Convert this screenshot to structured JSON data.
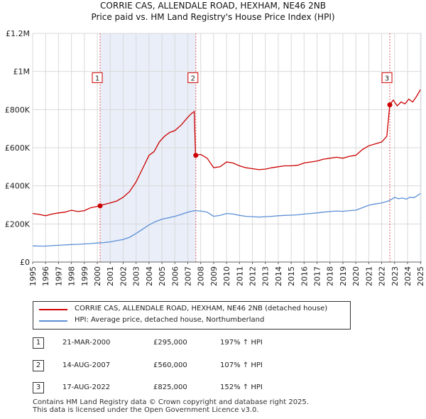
{
  "chart_data": {
    "type": "line",
    "title": "CORRIE CAS, ALLENDALE ROAD, HEXHAM, NE46 2NB",
    "subtitle": "Price paid vs. HM Land Registry's House Price Index (HPI)",
    "xlabel": "",
    "ylabel": "",
    "xlim": [
      1995,
      2025.1
    ],
    "ylim": [
      0,
      1200000
    ],
    "x_ticks": [
      1995,
      1996,
      1997,
      1998,
      1999,
      2000,
      2001,
      2002,
      2003,
      2004,
      2005,
      2006,
      2007,
      2008,
      2009,
      2010,
      2011,
      2012,
      2013,
      2014,
      2015,
      2016,
      2017,
      2018,
      2019,
      2020,
      2021,
      2022,
      2023,
      2024,
      2025
    ],
    "y_ticks": [
      {
        "value": 0,
        "label": "£0"
      },
      {
        "value": 200000,
        "label": "£200K"
      },
      {
        "value": 400000,
        "label": "£400K"
      },
      {
        "value": 600000,
        "label": "£600K"
      },
      {
        "value": 800000,
        "label": "£800K"
      },
      {
        "value": 1000000,
        "label": "£1M"
      },
      {
        "value": 1200000,
        "label": "£1.2M"
      }
    ],
    "grid": true,
    "series": [
      {
        "name": "CORRIE CAS, ALLENDALE ROAD, HEXHAM, NE46 2NB (detached house)",
        "color": "#cc0000",
        "points": [
          [
            1995.0,
            255000
          ],
          [
            1995.5,
            250000
          ],
          [
            1996.0,
            243000
          ],
          [
            1996.5,
            252000
          ],
          [
            1997.0,
            258000
          ],
          [
            1997.5,
            262000
          ],
          [
            1998.0,
            272000
          ],
          [
            1998.5,
            265000
          ],
          [
            1999.0,
            270000
          ],
          [
            1999.5,
            285000
          ],
          [
            2000.0,
            292000
          ],
          [
            2000.22,
            295000
          ],
          [
            2000.5,
            302000
          ],
          [
            2001.0,
            310000
          ],
          [
            2001.5,
            320000
          ],
          [
            2002.0,
            340000
          ],
          [
            2002.5,
            370000
          ],
          [
            2003.0,
            420000
          ],
          [
            2003.5,
            490000
          ],
          [
            2004.0,
            560000
          ],
          [
            2004.4,
            580000
          ],
          [
            2004.8,
            630000
          ],
          [
            2005.2,
            660000
          ],
          [
            2005.6,
            680000
          ],
          [
            2006.0,
            690000
          ],
          [
            2006.5,
            720000
          ],
          [
            2007.0,
            760000
          ],
          [
            2007.3,
            780000
          ],
          [
            2007.5,
            790000
          ],
          [
            2007.6,
            560000
          ],
          [
            2008.0,
            565000
          ],
          [
            2008.5,
            545000
          ],
          [
            2009.0,
            495000
          ],
          [
            2009.5,
            500000
          ],
          [
            2010.0,
            525000
          ],
          [
            2010.5,
            520000
          ],
          [
            2011.0,
            505000
          ],
          [
            2011.5,
            495000
          ],
          [
            2012.0,
            490000
          ],
          [
            2012.5,
            485000
          ],
          [
            2013.0,
            488000
          ],
          [
            2013.5,
            495000
          ],
          [
            2014.0,
            500000
          ],
          [
            2014.5,
            505000
          ],
          [
            2015.0,
            505000
          ],
          [
            2015.5,
            508000
          ],
          [
            2016.0,
            520000
          ],
          [
            2016.5,
            525000
          ],
          [
            2017.0,
            530000
          ],
          [
            2017.5,
            540000
          ],
          [
            2018.0,
            545000
          ],
          [
            2018.5,
            550000
          ],
          [
            2019.0,
            545000
          ],
          [
            2019.5,
            555000
          ],
          [
            2020.0,
            560000
          ],
          [
            2020.5,
            590000
          ],
          [
            2021.0,
            610000
          ],
          [
            2021.5,
            620000
          ],
          [
            2022.0,
            630000
          ],
          [
            2022.4,
            660000
          ],
          [
            2022.63,
            825000
          ],
          [
            2022.9,
            850000
          ],
          [
            2023.2,
            820000
          ],
          [
            2023.5,
            840000
          ],
          [
            2023.8,
            830000
          ],
          [
            2024.1,
            855000
          ],
          [
            2024.4,
            840000
          ],
          [
            2024.7,
            870000
          ],
          [
            2025.0,
            905000
          ]
        ]
      },
      {
        "name": "HPI: Average price, detached house, Northumberland",
        "color": "#5b8fd6",
        "points": [
          [
            1995.0,
            85000
          ],
          [
            1995.5,
            84000
          ],
          [
            1996.0,
            84000
          ],
          [
            1996.5,
            86000
          ],
          [
            1997.0,
            88000
          ],
          [
            1997.5,
            90000
          ],
          [
            1998.0,
            92000
          ],
          [
            1998.5,
            93000
          ],
          [
            1999.0,
            95000
          ],
          [
            1999.5,
            97000
          ],
          [
            2000.0,
            100000
          ],
          [
            2000.5,
            102000
          ],
          [
            2001.0,
            106000
          ],
          [
            2001.5,
            112000
          ],
          [
            2002.0,
            118000
          ],
          [
            2002.5,
            130000
          ],
          [
            2003.0,
            150000
          ],
          [
            2003.5,
            172000
          ],
          [
            2004.0,
            195000
          ],
          [
            2004.5,
            212000
          ],
          [
            2005.0,
            225000
          ],
          [
            2005.5,
            232000
          ],
          [
            2006.0,
            240000
          ],
          [
            2006.5,
            250000
          ],
          [
            2007.0,
            262000
          ],
          [
            2007.5,
            270000
          ],
          [
            2008.0,
            268000
          ],
          [
            2008.5,
            262000
          ],
          [
            2009.0,
            240000
          ],
          [
            2009.5,
            245000
          ],
          [
            2010.0,
            255000
          ],
          [
            2010.5,
            252000
          ],
          [
            2011.0,
            245000
          ],
          [
            2011.5,
            240000
          ],
          [
            2012.0,
            238000
          ],
          [
            2012.5,
            236000
          ],
          [
            2013.0,
            238000
          ],
          [
            2013.5,
            240000
          ],
          [
            2014.0,
            243000
          ],
          [
            2014.5,
            245000
          ],
          [
            2015.0,
            246000
          ],
          [
            2015.5,
            248000
          ],
          [
            2016.0,
            252000
          ],
          [
            2016.5,
            255000
          ],
          [
            2017.0,
            258000
          ],
          [
            2017.5,
            262000
          ],
          [
            2018.0,
            265000
          ],
          [
            2018.5,
            268000
          ],
          [
            2019.0,
            266000
          ],
          [
            2019.5,
            270000
          ],
          [
            2020.0,
            272000
          ],
          [
            2020.5,
            285000
          ],
          [
            2021.0,
            298000
          ],
          [
            2021.5,
            305000
          ],
          [
            2022.0,
            310000
          ],
          [
            2022.5,
            320000
          ],
          [
            2022.8,
            330000
          ],
          [
            2023.0,
            340000
          ],
          [
            2023.3,
            332000
          ],
          [
            2023.6,
            336000
          ],
          [
            2023.9,
            330000
          ],
          [
            2024.2,
            340000
          ],
          [
            2024.5,
            338000
          ],
          [
            2024.8,
            350000
          ],
          [
            2025.0,
            360000
          ]
        ]
      }
    ],
    "sales": [
      {
        "label": "1",
        "x": 2000.22,
        "value": 295000
      },
      {
        "label": "2",
        "x": 2007.62,
        "value": 560000
      },
      {
        "label": "3",
        "x": 2022.63,
        "value": 825000
      }
    ],
    "shaded_ranges": [
      [
        2000.22,
        2007.62
      ],
      [
        2025.0,
        2025.1
      ]
    ],
    "marker_box_value": 960000
  },
  "legend": {
    "property": "CORRIE CAS, ALLENDALE ROAD, HEXHAM, NE46 2NB (detached house)",
    "hpi": "HPI: Average price, detached house, Northumberland",
    "property_color": "#cc0000",
    "hpi_color": "#5b8fd6"
  },
  "sales_table": [
    {
      "num": "1",
      "date": "21-MAR-2000",
      "price": "£295,000",
      "hpi": "197% ↑ HPI"
    },
    {
      "num": "2",
      "date": "14-AUG-2007",
      "price": "£560,000",
      "hpi": "107% ↑ HPI"
    },
    {
      "num": "3",
      "date": "17-AUG-2022",
      "price": "£825,000",
      "hpi": "152% ↑ HPI"
    }
  ],
  "footer": {
    "line1": "Contains HM Land Registry data © Crown copyright and database right 2025.",
    "line2": "This data is licensed under the Open Government Licence v3.0."
  }
}
